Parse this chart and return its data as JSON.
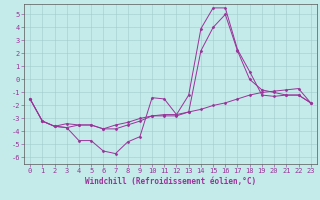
{
  "title": "",
  "xlabel": "Windchill (Refroidissement éolien,°C)",
  "ylabel": "",
  "xlim": [
    -0.5,
    23.5
  ],
  "ylim": [
    -6.5,
    5.8
  ],
  "yticks": [
    5,
    4,
    3,
    2,
    1,
    0,
    -1,
    -2,
    -3,
    -4,
    -5,
    -6
  ],
  "xticks": [
    0,
    1,
    2,
    3,
    4,
    5,
    6,
    7,
    8,
    9,
    10,
    11,
    12,
    13,
    14,
    15,
    16,
    17,
    18,
    19,
    20,
    21,
    22,
    23
  ],
  "background_color": "#c5eaea",
  "line_color": "#993399",
  "grid_color": "#a0cccc",
  "series": [
    {
      "x": [
        0,
        1,
        2,
        3,
        4,
        5,
        6,
        7,
        8,
        9,
        10,
        11,
        12,
        13,
        14,
        15,
        16,
        17,
        18,
        19,
        20,
        21,
        22,
        23
      ],
      "y": [
        -1.5,
        -3.2,
        -3.6,
        -3.7,
        -4.7,
        -4.7,
        -5.5,
        -5.7,
        -4.8,
        -4.4,
        -1.4,
        -1.5,
        -2.7,
        -1.2,
        3.9,
        5.5,
        5.5,
        2.3,
        0.6,
        -1.2,
        -1.3,
        -1.2,
        -1.2,
        -1.8
      ]
    },
    {
      "x": [
        0,
        1,
        2,
        3,
        4,
        5,
        6,
        7,
        8,
        9,
        10,
        11,
        12,
        13,
        14,
        15,
        16,
        17,
        18,
        19,
        20,
        21,
        22,
        23
      ],
      "y": [
        -1.5,
        -3.2,
        -3.6,
        -3.7,
        -3.5,
        -3.5,
        -3.8,
        -3.8,
        -3.5,
        -3.2,
        -2.8,
        -2.8,
        -2.8,
        -2.5,
        2.2,
        4.0,
        5.0,
        2.2,
        0.0,
        -0.8,
        -1.0,
        -1.2,
        -1.2,
        -1.8
      ]
    },
    {
      "x": [
        0,
        1,
        2,
        3,
        4,
        5,
        6,
        7,
        8,
        9,
        10,
        11,
        12,
        13,
        14,
        15,
        16,
        17,
        18,
        19,
        20,
        21,
        22,
        23
      ],
      "y": [
        -1.5,
        -3.2,
        -3.6,
        -3.4,
        -3.5,
        -3.5,
        -3.8,
        -3.5,
        -3.3,
        -3.0,
        -2.8,
        -2.7,
        -2.7,
        -2.5,
        -2.3,
        -2.0,
        -1.8,
        -1.5,
        -1.2,
        -1.0,
        -0.9,
        -0.8,
        -0.7,
        -1.8
      ]
    }
  ]
}
